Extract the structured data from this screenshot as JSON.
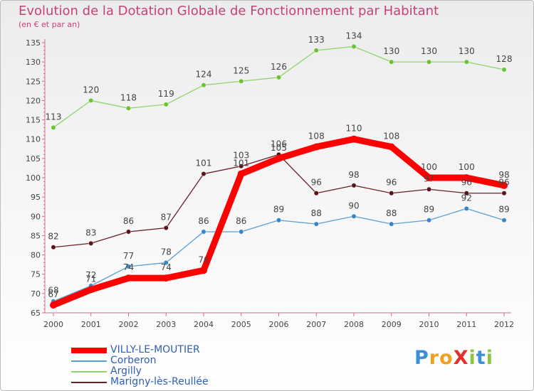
{
  "chart_data": {
    "type": "line",
    "title": "Evolution de la Dotation Globale de Fonctionnement par Habitant",
    "subtitle": "(en € et par an)",
    "xlabel": "",
    "ylabel": "",
    "categories": [
      "2000",
      "2001",
      "2002",
      "2003",
      "2004",
      "2005",
      "2006",
      "2007",
      "2008",
      "2009",
      "2010",
      "2011",
      "2012"
    ],
    "ylim": [
      65,
      135
    ],
    "yticks": [
      65,
      70,
      75,
      80,
      85,
      90,
      95,
      100,
      105,
      110,
      115,
      120,
      125,
      130,
      135
    ],
    "grid": false,
    "legend_position": "bottom-left",
    "series": [
      {
        "name": "Marigny-lès-Reullée",
        "color": "#6b1f2a",
        "point_color": "#5a1418",
        "values": [
          82,
          83,
          86,
          87,
          101,
          103,
          106,
          96,
          98,
          96,
          97,
          96,
          96
        ]
      },
      {
        "name": "Argilly",
        "color": "#8fd46a",
        "point_color": "#6cc233",
        "values": [
          113,
          120,
          118,
          119,
          124,
          125,
          126,
          133,
          134,
          130,
          130,
          130,
          128
        ]
      },
      {
        "name": "Corberon",
        "color": "#5a9fd4",
        "point_color": "#3a85c6",
        "values": [
          68,
          72,
          77,
          78,
          86,
          86,
          89,
          88,
          90,
          88,
          89,
          92,
          89
        ]
      },
      {
        "name": "VILLY-LE-MOUTIER",
        "color": "#ff0000",
        "point_color": "#ff0000",
        "values": [
          67,
          71,
          74,
          74,
          76,
          101,
          105,
          108,
          110,
          108,
          100,
          100,
          98
        ]
      }
    ]
  },
  "legend": {
    "items": [
      {
        "name": "VILLY-LE-MOUTIER",
        "color": "#ff0000"
      },
      {
        "name": "Corberon",
        "color": "#5a9fd4"
      },
      {
        "name": "Argilly",
        "color": "#8fd46a"
      },
      {
        "name": "Marigny-lès-Reullée",
        "color": "#6b1f2a"
      }
    ]
  },
  "logo": {
    "text": "ProXiti",
    "letters": [
      {
        "ch": "P",
        "color": "#3a8fd8"
      },
      {
        "ch": "r",
        "color": "#f0a020"
      },
      {
        "ch": "o",
        "color": "#f0a020"
      },
      {
        "ch": "X",
        "color": "#e0302a"
      },
      {
        "ch": "i",
        "color": "#8cc63f"
      },
      {
        "ch": "t",
        "color": "#3a8fd8"
      },
      {
        "ch": "i",
        "color": "#8cc63f"
      }
    ]
  },
  "colors": {
    "title": "#c8407a",
    "axis": "#e06090",
    "label": "#444444"
  }
}
